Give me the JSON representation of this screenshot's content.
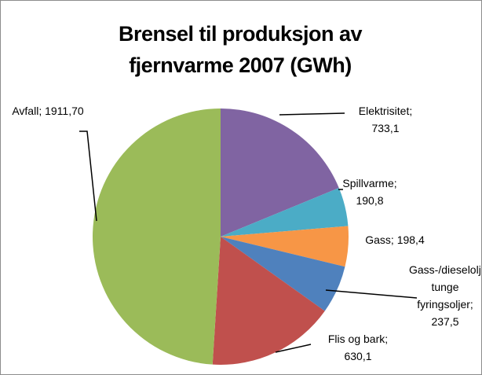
{
  "chart_data": {
    "type": "pie",
    "title": "Brensel til produksjon av fjernvarme 2007 (GWh)",
    "categories": [
      "Elektrisitet",
      "Spillvarme",
      "Gass",
      "Gass-/dieseloljer, tunge fyringsoljer",
      "Flis og bark",
      "Avfall"
    ],
    "values": [
      733.1,
      190.8,
      198.4,
      237.5,
      630.1,
      1911.7
    ],
    "value_labels": [
      "733,1",
      "190,8",
      "198,4",
      "237,5",
      "630,1",
      "1911,70"
    ],
    "label_separator": "; ",
    "colors": [
      "#8064a2",
      "#4bacc6",
      "#f79646",
      "#4f81bd",
      "#c0504d",
      "#9bbb59"
    ]
  }
}
